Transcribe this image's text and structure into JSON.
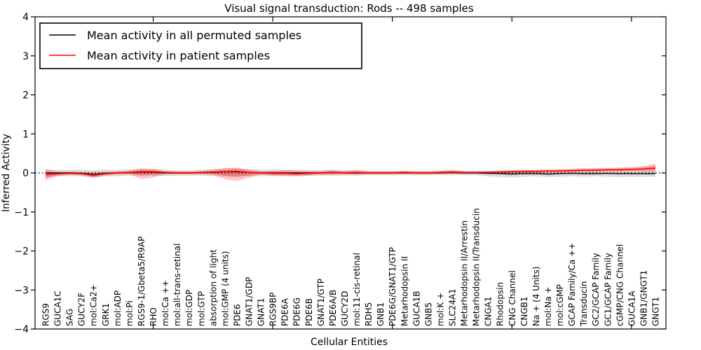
{
  "title": "Visual signal transduction: Rods -- 498 samples",
  "axes": {
    "xlabel": "Cellular Entities",
    "ylabel": "Inferred Activity",
    "ylim": [
      -4,
      4
    ],
    "yticks": [
      4,
      3,
      2,
      1,
      0,
      -1,
      -2,
      -3,
      -4
    ],
    "x_major_tick_indices": [
      9,
      19,
      29,
      39,
      49
    ],
    "grid": false,
    "zero_line": true
  },
  "legend": {
    "position": "upper left",
    "items": [
      {
        "label": "Mean activity in all permuted samples",
        "color": "#000000"
      },
      {
        "label": "Mean activity in patient samples",
        "color": "#ff0000"
      }
    ]
  },
  "colors": {
    "permuted_line": "#000000",
    "patient_line": "#ff0000",
    "permuted_band": "rgba(0,0,0,0.13)",
    "patient_band_outer": "rgba(255,0,0,0.22)",
    "patient_band_inner": "rgba(255,0,0,0.28)",
    "spine": "#000000",
    "background": "#ffffff"
  },
  "chart_data": {
    "type": "line",
    "title": "Visual signal transduction: Rods -- 498 samples",
    "xlabel": "Cellular Entities",
    "ylabel": "Inferred Activity",
    "ylim": [
      -4,
      4
    ],
    "legend_position": "upper left",
    "categories": [
      "RGS9",
      "GUCA1C",
      "SAG",
      "GUCY2F",
      "mol:Ca2+",
      "GRK1",
      "mol:ADP",
      "mol:Pi",
      "RGS9-1/Gbeta5/R9AP",
      "RHO",
      "mol:Ca ++",
      "mol:all-trans-retinal",
      "mol:GDP",
      "mol:GTP",
      "absorption of light",
      "mol:GMP (4 units)",
      "PDE6",
      "GNAT1/GDP",
      "GNAT1",
      "RGS9BP",
      "PDE6A",
      "PDE6G",
      "PDE6B",
      "GNAT1/GTP",
      "PDE6A/B",
      "GUCY2D",
      "mol:11-cis-retinal",
      "RDH5",
      "GNB1",
      "PDE6G/GNAT1/GTP",
      "Metarhodopsin II",
      "GUCA1B",
      "GNB5",
      "mol:K +",
      "SLC24A1",
      "Metarhodopsin II/Arrestin",
      "Metarhodopsin II/Transducin",
      "CNGA1",
      "Rhodopsin",
      "CNG Channel",
      "CNGB1",
      "Na + (4 Units)",
      "mol:Na +",
      "mol:cGMP",
      "GCAP Family/Ca ++",
      "Transducin",
      "GC2/GCAP Family",
      "GC1/GCAP Family",
      "cGMP/CNG Channel",
      "GUCA1A",
      "GNB1/GNGT1",
      "GNGT1"
    ],
    "series": [
      {
        "name": "Mean activity in all permuted samples",
        "color": "#000000",
        "values": [
          0,
          0,
          0,
          -0.01,
          -0.04,
          -0.01,
          0,
          0.01,
          0.02,
          0.02,
          0,
          0,
          0,
          0.01,
          0.01,
          0.03,
          0.03,
          0.01,
          0,
          0,
          0,
          0,
          0,
          0,
          0.01,
          0,
          0,
          0,
          0,
          0,
          0,
          0,
          0,
          0,
          0.01,
          0,
          0,
          -0.01,
          -0.02,
          -0.03,
          -0.02,
          -0.02,
          -0.03,
          -0.02,
          -0.01,
          -0.02,
          -0.02,
          -0.01,
          -0.02,
          -0.02,
          -0.02,
          -0.02
        ],
        "band_upper": [
          0.09,
          0.08,
          0.08,
          0.08,
          0.07,
          0.08,
          0.08,
          0.09,
          0.1,
          0.1,
          0.08,
          0.07,
          0.07,
          0.08,
          0.1,
          0.12,
          0.12,
          0.09,
          0.08,
          0.08,
          0.08,
          0.08,
          0.07,
          0.07,
          0.08,
          0.07,
          0.08,
          0.06,
          0.06,
          0.06,
          0.06,
          0.06,
          0.06,
          0.07,
          0.08,
          0.06,
          0.06,
          0.06,
          0.06,
          0.06,
          0.06,
          0.06,
          0.06,
          0.06,
          0.07,
          0.06,
          0.06,
          0.06,
          0.06,
          0.06,
          0.06,
          0.07
        ],
        "band_lower": [
          -0.1,
          -0.09,
          -0.08,
          -0.09,
          -0.12,
          -0.09,
          -0.08,
          -0.07,
          -0.07,
          -0.07,
          -0.08,
          -0.07,
          -0.07,
          -0.07,
          -0.08,
          -0.09,
          -0.1,
          -0.08,
          -0.08,
          -0.08,
          -0.08,
          -0.08,
          -0.07,
          -0.07,
          -0.07,
          -0.07,
          -0.07,
          -0.06,
          -0.06,
          -0.06,
          -0.06,
          -0.06,
          -0.06,
          -0.06,
          -0.06,
          -0.06,
          -0.06,
          -0.09,
          -0.11,
          -0.12,
          -0.1,
          -0.09,
          -0.11,
          -0.1,
          -0.09,
          -0.1,
          -0.09,
          -0.1,
          -0.11,
          -0.1,
          -0.1,
          -0.1
        ]
      },
      {
        "name": "Mean activity in patient samples",
        "color": "#ff0000",
        "values": [
          -0.04,
          -0.02,
          -0.01,
          -0.02,
          -0.06,
          -0.02,
          0,
          0.01,
          0.03,
          0.03,
          0.01,
          0,
          0,
          0.01,
          0.02,
          0.03,
          0.04,
          0.01,
          0,
          -0.01,
          -0.01,
          -0.02,
          -0.01,
          0,
          0.01,
          0,
          0.01,
          0,
          0,
          0,
          0.01,
          0,
          0,
          0.01,
          0.02,
          0.01,
          0.01,
          0.01,
          0.02,
          0.03,
          0.04,
          0.04,
          0.05,
          0.05,
          0.06,
          0.07,
          0.07,
          0.08,
          0.08,
          0.09,
          0.1,
          0.12
        ],
        "band_upper": [
          0.1,
          0.03,
          0.03,
          0.03,
          0.02,
          0.03,
          0.04,
          0.06,
          0.12,
          0.1,
          0.05,
          0.04,
          0.04,
          0.05,
          0.08,
          0.12,
          0.13,
          0.09,
          0.05,
          0.06,
          0.07,
          0.06,
          0.05,
          0.05,
          0.07,
          0.05,
          0.07,
          0.04,
          0.04,
          0.04,
          0.05,
          0.04,
          0.04,
          0.05,
          0.07,
          0.04,
          0.04,
          0.05,
          0.06,
          0.07,
          0.08,
          0.08,
          0.09,
          0.1,
          0.11,
          0.12,
          0.12,
          0.13,
          0.14,
          0.15,
          0.17,
          0.24
        ],
        "band_lower": [
          -0.19,
          -0.08,
          -0.05,
          -0.06,
          -0.13,
          -0.07,
          -0.04,
          -0.04,
          -0.15,
          -0.12,
          -0.04,
          -0.04,
          -0.04,
          -0.04,
          -0.06,
          -0.16,
          -0.21,
          -0.12,
          -0.05,
          -0.07,
          -0.08,
          -0.09,
          -0.07,
          -0.05,
          -0.05,
          -0.04,
          -0.05,
          -0.04,
          -0.04,
          -0.04,
          -0.03,
          -0.04,
          -0.04,
          -0.03,
          -0.03,
          -0.03,
          -0.03,
          -0.03,
          -0.02,
          -0.02,
          -0.01,
          0.0,
          0.0,
          0.01,
          0.01,
          0.02,
          0.02,
          0.03,
          0.03,
          0.03,
          0.03,
          0.02
        ]
      }
    ]
  }
}
